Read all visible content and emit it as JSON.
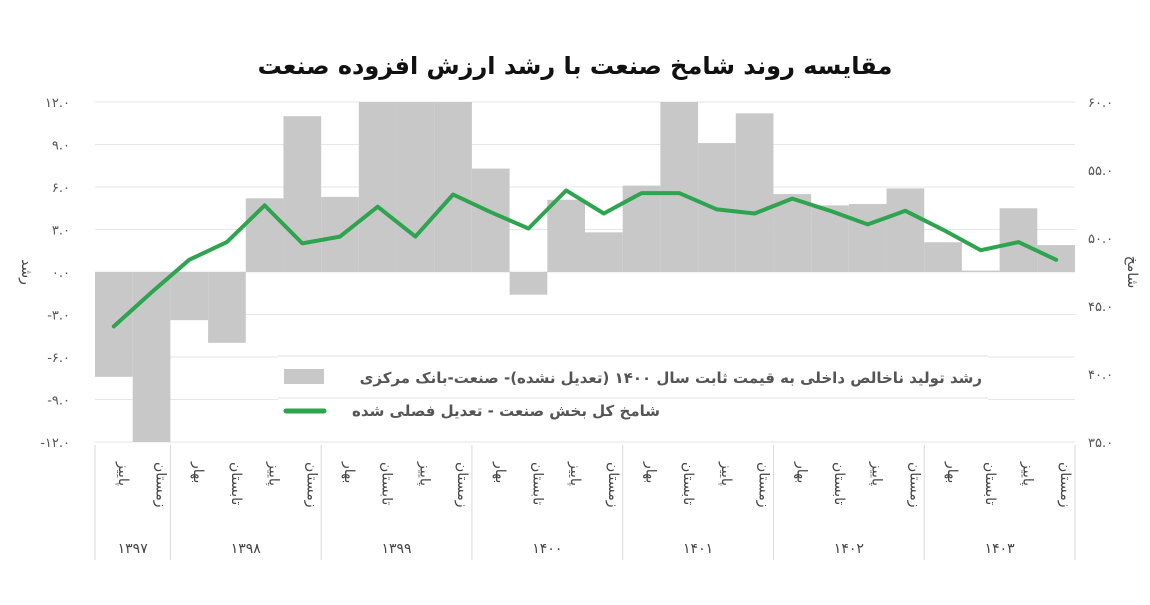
{
  "chart_data": {
    "type": "bar+line",
    "title": "مقایسه روند شامخ صنعت با رشد ارزش افزوده صنعت",
    "ylabel_left": "رشد",
    "ylabel_right": "شامخ",
    "ylim_left": [
      -12,
      12
    ],
    "ylim_right": [
      35,
      60
    ],
    "yticks_left": [
      "۱۲.۰",
      "۹.۰",
      "۶.۰",
      "۳.۰",
      "۰.۰",
      "-۳.۰",
      "-۶.۰",
      "-۹.۰",
      "-۱۲.۰"
    ],
    "yticks_right": [
      "۶۰.۰",
      "۵۵.۰",
      "۵۰.۰",
      "۴۵.۰",
      "۴۰.۰",
      "۳۵.۰"
    ],
    "grid": true,
    "legend_placement": "bottom-center inside plot",
    "years": [
      {
        "label": "۱۳۹۷",
        "seasons": [
          "پاییز",
          "زمستان"
        ]
      },
      {
        "label": "۱۳۹۸",
        "seasons": [
          "بهار",
          "تابستان",
          "پاییز",
          "زمستان"
        ]
      },
      {
        "label": "۱۳۹۹",
        "seasons": [
          "بهار",
          "تابستان",
          "پاییز",
          "زمستان"
        ]
      },
      {
        "label": "۱۴۰۰",
        "seasons": [
          "بهار",
          "تابستان",
          "پاییز",
          "زمستان"
        ]
      },
      {
        "label": "۱۴۰۱",
        "seasons": [
          "بهار",
          "تابستان",
          "پاییز",
          "زمستان"
        ]
      },
      {
        "label": "۱۴۰۲",
        "seasons": [
          "بهار",
          "تابستان",
          "پاییز",
          "زمستان"
        ]
      },
      {
        "label": "۱۴۰۳",
        "seasons": [
          "بهار",
          "تابستان",
          "پاییز",
          "زمستان"
        ]
      }
    ],
    "series": [
      {
        "name": "رشد تولید ناخالص داخلی به قیمت ثابت سال ۱۴۰۰ (تعدیل نشده)- صنعت-بانک مرکزی",
        "type": "bar",
        "axis": "left",
        "color": "#c8c8c8",
        "values": [
          -7.4,
          -13,
          -3.4,
          -5.0,
          5.2,
          11.0,
          5.3,
          13,
          13,
          13,
          7.3,
          -1.6,
          5.1,
          2.8,
          6.1,
          13,
          9.1,
          11.2,
          5.5,
          4.7,
          4.8,
          5.9,
          2.1,
          0.1,
          4.5,
          1.9
        ]
      },
      {
        "name": "شامخ کل بخش صنعت - تعدیل فصلی شده",
        "type": "line",
        "axis": "right",
        "color": "#2ea44f",
        "values": [
          43.5,
          46.0,
          48.4,
          49.7,
          52.4,
          49.6,
          50.1,
          52.3,
          50.1,
          53.2,
          51.9,
          50.7,
          53.5,
          51.8,
          53.3,
          53.3,
          52.1,
          51.8,
          52.9,
          52.0,
          51.0,
          52.0,
          50.6,
          49.1,
          49.7,
          48.4
        ]
      }
    ]
  }
}
